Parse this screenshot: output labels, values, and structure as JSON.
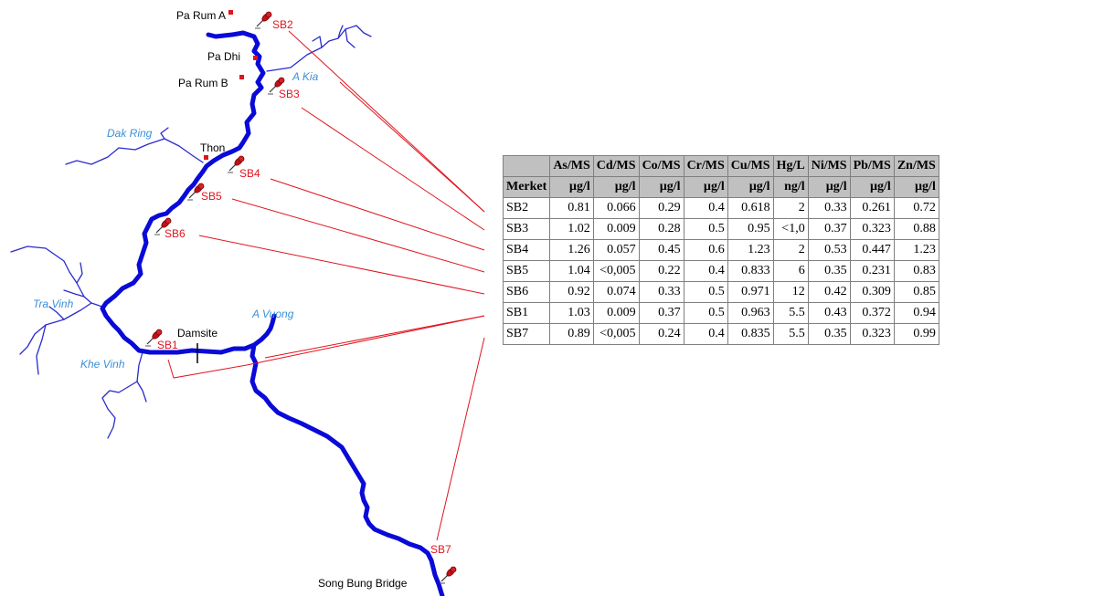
{
  "colors": {
    "river": "#0a0ad8",
    "tributary": "#2a2ad0",
    "connector": "#e0141e",
    "point": "#e0141e",
    "river_label": "#3a8fd8",
    "header_bg": "#c0c0c0"
  },
  "places": {
    "pa_rum_a": "Pa Rum A",
    "pa_dhi": "Pa Dhi",
    "pa_rum_b": "Pa Rum B",
    "thon": "Thon",
    "damsite": "Damsite",
    "song_bung_bridge": "Song Bung Bridge"
  },
  "rivers": {
    "a_kia": "A Kia",
    "dak_ring": "Dak Ring",
    "tra_vinh": "Tra Vinh",
    "a_vuong": "A Vuong",
    "khe_vinh": "Khe Vinh"
  },
  "stations": {
    "sb1": "SB1",
    "sb2": "SB2",
    "sb3": "SB3",
    "sb4": "SB4",
    "sb5": "SB5",
    "sb6": "SB6",
    "sb7": "SB7"
  },
  "table": {
    "header_params": [
      "As/MS",
      "Cd/MS",
      "Co/MS",
      "Cr/MS",
      "Cu/MS",
      "Hg/L",
      "Ni/MS",
      "Pb/MS",
      "Zn/MS"
    ],
    "row_label": "Merket",
    "units": [
      "µg/l",
      "µg/l",
      "µg/l",
      "µg/l",
      "µg/l",
      "ng/l",
      "µg/l",
      "µg/l",
      "µg/l"
    ],
    "rows": [
      {
        "name": "SB2",
        "values": [
          "0.81",
          "0.066",
          "0.29",
          "0.4",
          "0.618",
          "2",
          "0.33",
          "0.261",
          "0.72"
        ]
      },
      {
        "name": "SB3",
        "values": [
          "1.02",
          "0.009",
          "0.28",
          "0.5",
          "0.95",
          "<1,0",
          "0.37",
          "0.323",
          "0.88"
        ]
      },
      {
        "name": "SB4",
        "values": [
          "1.26",
          "0.057",
          "0.45",
          "0.6",
          "1.23",
          "2",
          "0.53",
          "0.447",
          "1.23"
        ]
      },
      {
        "name": "SB5",
        "values": [
          "1.04",
          "<0,005",
          "0.22",
          "0.4",
          "0.833",
          "6",
          "0.35",
          "0.231",
          "0.83"
        ]
      },
      {
        "name": "SB6",
        "values": [
          "0.92",
          "0.074",
          "0.33",
          "0.5",
          "0.971",
          "12",
          "0.42",
          "0.309",
          "0.85"
        ]
      },
      {
        "name": "SB1",
        "values": [
          "1.03",
          "0.009",
          "0.37",
          "0.5",
          "0.963",
          "5.5",
          "0.43",
          "0.372",
          "0.94"
        ]
      },
      {
        "name": "SB7",
        "values": [
          "0.89",
          "<0,005",
          "0.24",
          "0.4",
          "0.835",
          "5.5",
          "0.35",
          "0.323",
          "0.99"
        ]
      }
    ]
  }
}
